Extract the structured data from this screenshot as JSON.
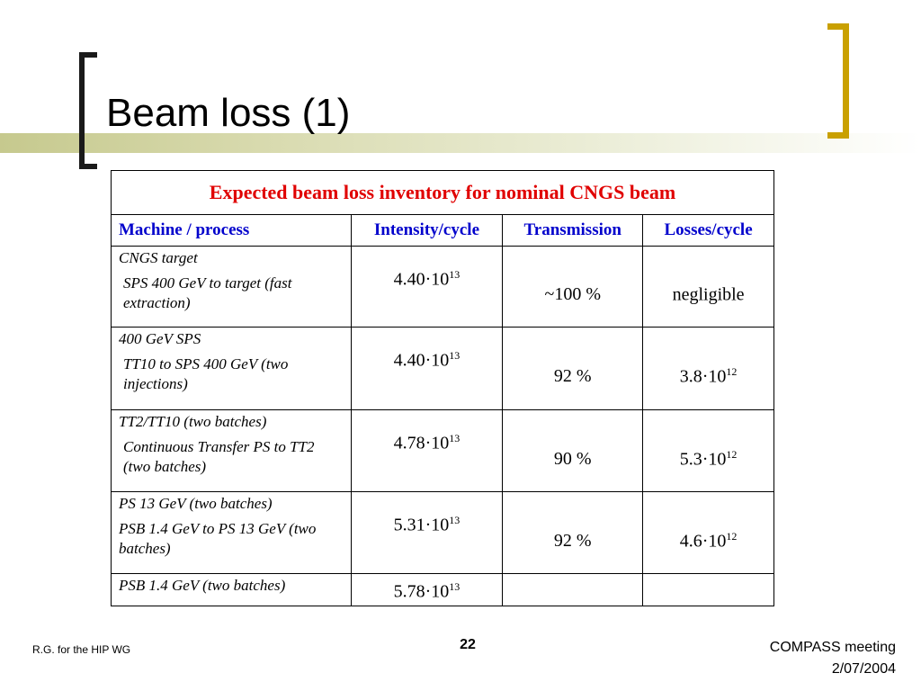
{
  "slide": {
    "title": "Beam loss (1)",
    "colors": {
      "band": "#c6c98e",
      "bracket_left": "#1a1a1a",
      "bracket_right": "#c9a000",
      "caption": "#e00000",
      "header": "#0000cc"
    }
  },
  "table": {
    "caption": "Expected beam loss inventory for nominal CNGS beam",
    "headers": [
      "Machine / process",
      "Intensity/cycle",
      "Transmission",
      "Losses/cycle"
    ],
    "rows": [
      {
        "machine": "CNGS target",
        "process": "SPS 400 GeV to target (fast extraction)",
        "intensity": "4.40·10",
        "intensity_exp": "13",
        "transmission": "~100 %",
        "losses": "negligible",
        "losses_exp": ""
      },
      {
        "machine": "400 GeV SPS",
        "process": "TT10 to SPS 400 GeV (two injections)",
        "intensity": "4.40·10",
        "intensity_exp": "13",
        "transmission": "92 %",
        "losses": "3.8·10",
        "losses_exp": "12"
      },
      {
        "machine": "TT2/TT10 (two batches)",
        "process": "Continuous Transfer PS to TT2 (two batches)",
        "intensity": "4.78·10",
        "intensity_exp": "13",
        "transmission": "90 %",
        "losses": "5.3·10",
        "losses_exp": "12"
      },
      {
        "machine": "PS 13 GeV (two batches)",
        "process": "PSB 1.4 GeV to PS 13 GeV (two batches)",
        "intensity": "5.31·10",
        "intensity_exp": "13",
        "transmission": "92 %",
        "losses": "4.6·10",
        "losses_exp": "12"
      },
      {
        "machine": "PSB 1.4 GeV (two batches)",
        "process": "",
        "intensity": "5.78·10",
        "intensity_exp": "13",
        "transmission": "",
        "losses": "",
        "losses_exp": ""
      }
    ]
  },
  "footer": {
    "author": "R.G. for the HIP WG",
    "page": "22",
    "event": "COMPASS meeting",
    "date": "2/07/2004"
  }
}
